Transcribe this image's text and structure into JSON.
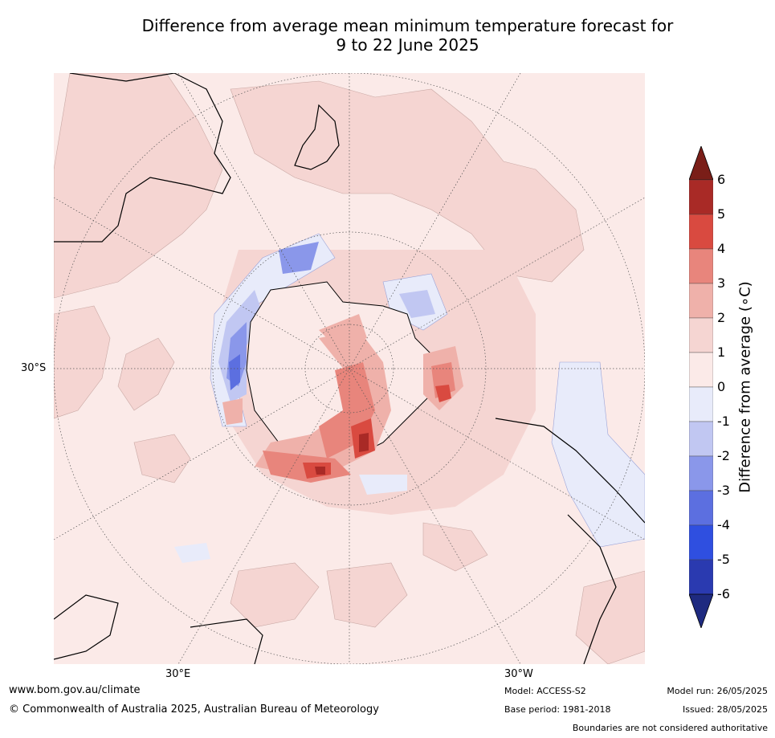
{
  "title_line1": "Difference from average mean minimum temperature forecast for",
  "title_line2": "9 to 22 June 2025",
  "map": {
    "lat_label": "30°S",
    "lon_label_east": "30°E",
    "lon_label_west": "30°W"
  },
  "colorbar": {
    "title": "Difference from average (∘C)",
    "ticks": [
      "6",
      "5",
      "4",
      "3",
      "2",
      "1",
      "0",
      "-1",
      "-2",
      "-3",
      "-4",
      "-5",
      "-6"
    ],
    "colors_top_to_bottom": [
      "#7a1e18",
      "#a92a26",
      "#d94a40",
      "#e8857c",
      "#efb1aa",
      "#f5d5d2",
      "#fbeae8",
      "#e8ebfa",
      "#c1c7f2",
      "#8a97ea",
      "#5c6fe0",
      "#2f4fe0",
      "#2a3ab0",
      "#1e2a80"
    ]
  },
  "footer": {
    "website": "www.bom.gov.au/climate",
    "copyright": "© Commonwealth of Australia 2025, Australian Bureau of Meteorology",
    "model": "Model: ACCESS-S2",
    "base_period": "Base period: 1981-2018",
    "model_run": "Model run: 26/05/2025",
    "issued": "Issued: 28/05/2025",
    "disclaimer": "Boundaries are not considered authoritative"
  }
}
